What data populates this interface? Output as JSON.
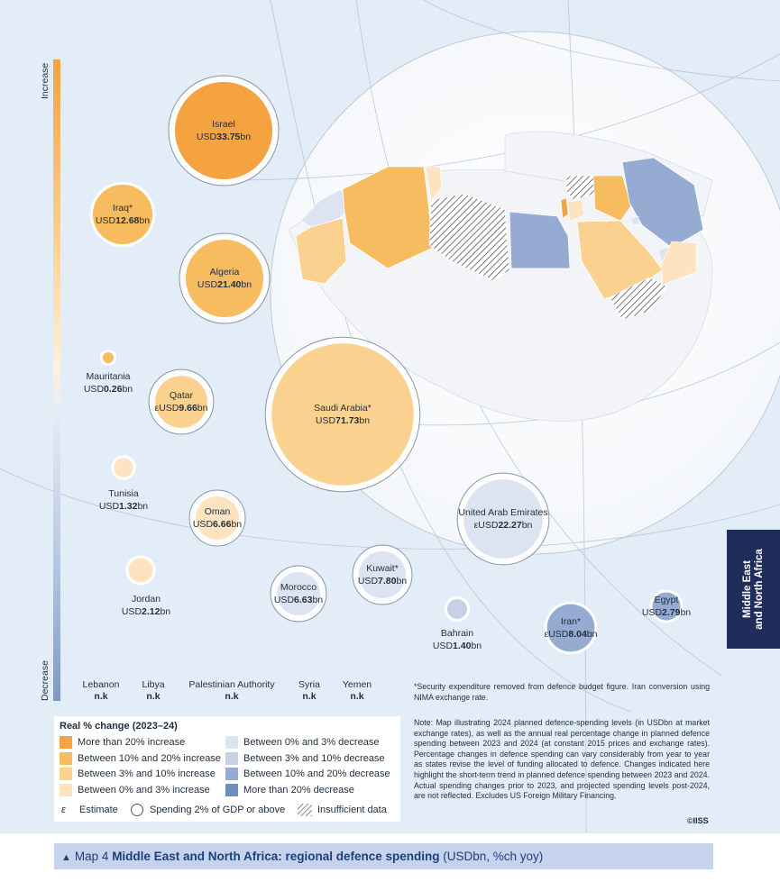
{
  "scale": {
    "top_label": "Increase",
    "bottom_label": "Decrease"
  },
  "colors": {
    "inc_20_plus": "#f4a340",
    "inc_10_20": "#f8bc60",
    "inc_3_10": "#fbd18f",
    "inc_0_3": "#fde3bf",
    "dec_0_3": "#dde4f1",
    "dec_3_10": "#c6d1e6",
    "dec_10_20": "#95abd2",
    "dec_20_plus": "#6f8cbf",
    "land": "#f4f7fb",
    "ocean_globe": "#ffffff"
  },
  "bubbles": [
    {
      "name": "Israel",
      "prefix": "USD",
      "value": "33.75",
      "suffix": "bn",
      "usd_bn": 33.75,
      "category": "inc_20_plus",
      "two_pct_gdp": true
    },
    {
      "name": "Iraq*",
      "prefix": "USD",
      "value": "12.68",
      "suffix": "bn",
      "usd_bn": 12.68,
      "category": "inc_10_20",
      "two_pct_gdp": false
    },
    {
      "name": "Algeria",
      "prefix": "USD",
      "value": "21.40",
      "suffix": "bn",
      "usd_bn": 21.4,
      "category": "inc_10_20",
      "two_pct_gdp": true
    },
    {
      "name": "Mauritania",
      "prefix": "USD",
      "value": "0.26",
      "suffix": "bn",
      "usd_bn": 0.26,
      "category": "inc_10_20",
      "two_pct_gdp": false
    },
    {
      "name": "Qatar",
      "prefix": "εUSD",
      "value": "9.66",
      "suffix": "bn",
      "usd_bn": 9.66,
      "category": "inc_3_10",
      "two_pct_gdp": true
    },
    {
      "name": "Saudi Arabia*",
      "prefix": "USD",
      "value": "71.73",
      "suffix": "bn",
      "usd_bn": 71.73,
      "category": "inc_3_10",
      "two_pct_gdp": true
    },
    {
      "name": "Tunisia",
      "prefix": "USD",
      "value": "1.32",
      "suffix": "bn",
      "usd_bn": 1.32,
      "category": "inc_0_3",
      "two_pct_gdp": false
    },
    {
      "name": "Oman",
      "prefix": "USD",
      "value": "6.66",
      "suffix": "bn",
      "usd_bn": 6.66,
      "category": "inc_0_3",
      "two_pct_gdp": true
    },
    {
      "name": "Jordan",
      "prefix": "USD",
      "value": "2.12",
      "suffix": "bn",
      "usd_bn": 2.12,
      "category": "inc_0_3",
      "two_pct_gdp": false
    },
    {
      "name": "United Arab Emirates",
      "prefix": "εUSD",
      "value": "22.27",
      "suffix": "bn",
      "usd_bn": 22.27,
      "category": "dec_0_3",
      "two_pct_gdp": true
    },
    {
      "name": "Morocco",
      "prefix": "USD",
      "value": "6.63",
      "suffix": "bn",
      "usd_bn": 6.63,
      "category": "dec_0_3",
      "two_pct_gdp": true
    },
    {
      "name": "Kuwait*",
      "prefix": "USD",
      "value": "7.80",
      "suffix": "bn",
      "usd_bn": 7.8,
      "category": "dec_0_3",
      "two_pct_gdp": true
    },
    {
      "name": "Bahrain",
      "prefix": "USD",
      "value": "1.40",
      "suffix": "bn",
      "usd_bn": 1.4,
      "category": "dec_3_10",
      "two_pct_gdp": false
    },
    {
      "name": "Iran*",
      "prefix": "εUSD",
      "value": "8.04",
      "suffix": "bn",
      "usd_bn": 8.04,
      "category": "dec_10_20",
      "two_pct_gdp": false
    },
    {
      "name": "Egypt",
      "prefix": "USD",
      "value": "2.79",
      "suffix": "bn",
      "usd_bn": 2.79,
      "category": "dec_10_20",
      "two_pct_gdp": false
    }
  ],
  "no_data": [
    {
      "name": "Lebanon",
      "value": "n.k"
    },
    {
      "name": "Libya",
      "value": "n.k"
    },
    {
      "name": "Palestinian Authority",
      "value": "n.k"
    },
    {
      "name": "Syria",
      "value": "n.k"
    },
    {
      "name": "Yemen",
      "value": "n.k"
    }
  ],
  "legend": {
    "title": "Real % change (2023–24)",
    "items": [
      {
        "label": "More than 20% increase",
        "color_key": "inc_20_plus"
      },
      {
        "label": "Between 10% and 20% increase",
        "color_key": "inc_10_20"
      },
      {
        "label": "Between 3% and 10% increase",
        "color_key": "inc_3_10"
      },
      {
        "label": "Between 0% and 3% increase",
        "color_key": "inc_0_3"
      },
      {
        "label": "Between 0% and 3% decrease",
        "color_key": "dec_0_3"
      },
      {
        "label": "Between 3% and 10% decrease",
        "color_key": "dec_3_10"
      },
      {
        "label": "Between 10% and 20% decrease",
        "color_key": "dec_10_20"
      },
      {
        "label": "More than 20% decrease",
        "color_key": "dec_20_plus"
      }
    ],
    "estimate_symbol": "ε",
    "estimate_label": "Estimate",
    "gdp_label": "Spending 2% of GDP or above",
    "insufficient_label": "Insufficient data"
  },
  "footnote": "*Security expenditure removed from defence budget figure. Iran conversion using NIMA exchange rate.",
  "note": "Note: Map illustrating 2024 planned defence-spending levels (in USDbn at market exchange rates), as well as the annual real percentage change in planned defence spending between 2023 and 2024 (at constant 2015 prices and exchange rates). Percentage changes in defence spending can vary considerably from year to year as states revise the level of funding allocated to defence. Changes indicated here highlight the short-term trend in planned defence spending between 2023 and 2024. Actual spending changes prior to 2023, and projected spending levels post-2024, are not reflected. Excludes US Foreign Military Financing.",
  "copyright": "©IISS",
  "side_tab": {
    "line1": "Middle East",
    "line2": "and North Africa"
  },
  "caption": {
    "map_no": "Map 4",
    "title": "Middle East and North Africa: regional defence spending",
    "units": "(USDbn, %ch yoy)"
  }
}
